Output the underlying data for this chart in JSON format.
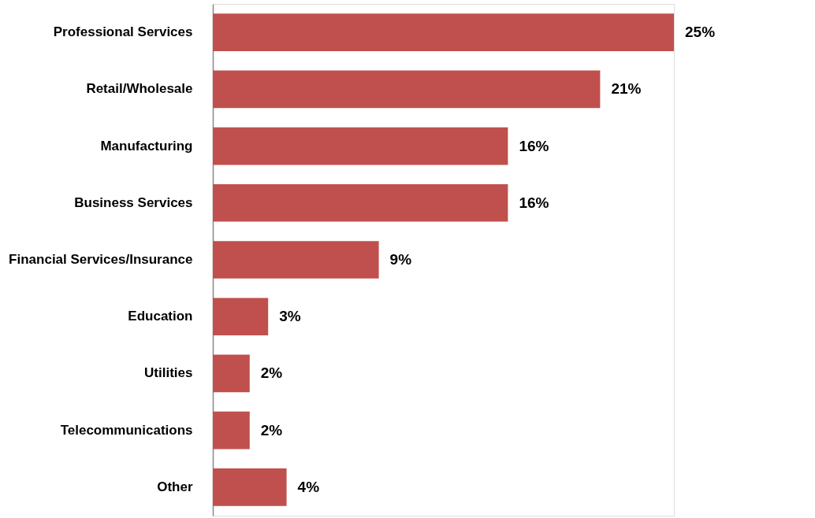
{
  "chart_data": {
    "type": "bar",
    "orientation": "horizontal",
    "categories": [
      "Professional Services",
      "Retail/Wholesale",
      "Manufacturing",
      "Business Services",
      "Financial Services/Insurance",
      "Education",
      "Utilities",
      "Telecommunications",
      "Other"
    ],
    "values": [
      25,
      21,
      16,
      16,
      9,
      3,
      2,
      2,
      4
    ],
    "value_labels": [
      "25%",
      "21%",
      "16%",
      "16%",
      "9%",
      "3%",
      "2%",
      "2%",
      "4%"
    ],
    "color": "#c0504d"
  }
}
